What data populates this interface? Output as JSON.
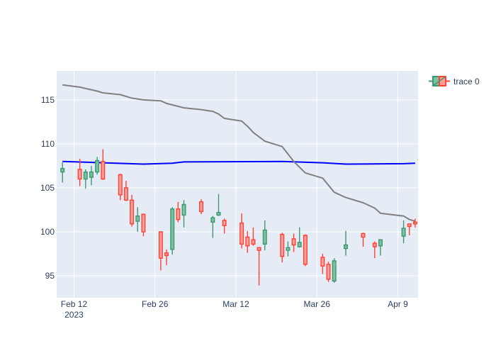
{
  "chart_data": {
    "type": "candlestick",
    "title": "",
    "xlabel": "",
    "ylabel": "",
    "ylim": [
      92.5,
      118.3
    ],
    "x_ticks": [
      {
        "date": "2023-02-12",
        "label": "Feb 12",
        "sublabel": "2023"
      },
      {
        "date": "2023-02-26",
        "label": "Feb 26",
        "sublabel": ""
      },
      {
        "date": "2023-03-12",
        "label": "Mar 12",
        "sublabel": ""
      },
      {
        "date": "2023-03-26",
        "label": "Mar 26",
        "sublabel": ""
      },
      {
        "date": "2023-04-09",
        "label": "Apr 9",
        "sublabel": ""
      }
    ],
    "y_ticks": [
      95,
      100,
      105,
      110,
      115
    ],
    "grid": true,
    "legend": {
      "position": "top-right",
      "entries": [
        {
          "name": "trace 0"
        }
      ]
    },
    "colors": {
      "plot_bg": "#e5ecf6",
      "grid": "#ffffff",
      "increasing": "#3d9970",
      "increasing_fill": "#7fbfa2",
      "decreasing": "#ff4136",
      "decreasing_fill": "#ff9f9a",
      "blue_line": "#0000ff",
      "gray_line": "#808080",
      "text": "#2a3f5f"
    },
    "series": [
      {
        "type": "ohlc",
        "name": "trace 0",
        "data": [
          {
            "date": "2023-02-10",
            "open": 106.8,
            "high": 107.9,
            "low": 105.6,
            "close": 107.2
          },
          {
            "date": "2023-02-13",
            "open": 107.1,
            "high": 108.3,
            "low": 105.2,
            "close": 106.0
          },
          {
            "date": "2023-02-14",
            "open": 106.0,
            "high": 107.1,
            "low": 104.9,
            "close": 106.8
          },
          {
            "date": "2023-02-15",
            "open": 106.2,
            "high": 107.5,
            "low": 105.3,
            "close": 106.8
          },
          {
            "date": "2023-02-16",
            "open": 106.8,
            "high": 108.5,
            "low": 106.5,
            "close": 108.1
          },
          {
            "date": "2023-02-17",
            "open": 108.0,
            "high": 109.4,
            "low": 105.9,
            "close": 106.0
          },
          {
            "date": "2023-02-20",
            "open": 106.5,
            "high": 106.6,
            "low": 103.6,
            "close": 104.2
          },
          {
            "date": "2023-02-21",
            "open": 105.0,
            "high": 105.8,
            "low": 103.5,
            "close": 103.6
          },
          {
            "date": "2023-02-22",
            "open": 103.6,
            "high": 104.2,
            "low": 100.6,
            "close": 100.9
          },
          {
            "date": "2023-02-23",
            "open": 101.2,
            "high": 102.8,
            "low": 100.0,
            "close": 101.8
          },
          {
            "date": "2023-02-24",
            "open": 102.0,
            "high": 102.0,
            "low": 99.5,
            "close": 100.0
          },
          {
            "date": "2023-02-27",
            "open": 100.0,
            "high": 100.0,
            "low": 95.6,
            "close": 97.0
          },
          {
            "date": "2023-02-28",
            "open": 97.6,
            "high": 98.0,
            "low": 96.2,
            "close": 97.3
          },
          {
            "date": "2023-03-01",
            "open": 98.0,
            "high": 102.8,
            "low": 97.4,
            "close": 102.6
          },
          {
            "date": "2023-03-02",
            "open": 102.6,
            "high": 103.4,
            "low": 101.1,
            "close": 101.4
          },
          {
            "date": "2023-03-03",
            "open": 101.9,
            "high": 103.6,
            "low": 100.5,
            "close": 103.1
          },
          {
            "date": "2023-03-06",
            "open": 103.4,
            "high": 103.7,
            "low": 102.0,
            "close": 102.3
          },
          {
            "date": "2023-03-08",
            "open": 101.1,
            "high": 101.8,
            "low": 99.3,
            "close": 101.6
          },
          {
            "date": "2023-03-09",
            "open": 101.9,
            "high": 104.3,
            "low": 101.8,
            "close": 102.2
          },
          {
            "date": "2023-03-10",
            "open": 101.3,
            "high": 101.5,
            "low": 99.8,
            "close": 100.7
          },
          {
            "date": "2023-03-13",
            "open": 101.0,
            "high": 102.1,
            "low": 98.1,
            "close": 98.6
          },
          {
            "date": "2023-03-14",
            "open": 99.4,
            "high": 100.1,
            "low": 97.6,
            "close": 98.4
          },
          {
            "date": "2023-03-15",
            "open": 99.1,
            "high": 100.5,
            "low": 98.4,
            "close": 98.6
          },
          {
            "date": "2023-03-16",
            "open": 98.2,
            "high": 98.2,
            "low": 93.9,
            "close": 97.9
          },
          {
            "date": "2023-03-17",
            "open": 98.6,
            "high": 101.3,
            "low": 97.9,
            "close": 100.2
          },
          {
            "date": "2023-03-20",
            "open": 99.7,
            "high": 99.9,
            "low": 96.5,
            "close": 97.2
          },
          {
            "date": "2023-03-21",
            "open": 97.9,
            "high": 98.9,
            "low": 97.2,
            "close": 98.2
          },
          {
            "date": "2023-03-22",
            "open": 99.2,
            "high": 99.8,
            "low": 97.7,
            "close": 98.5
          },
          {
            "date": "2023-03-23",
            "open": 98.3,
            "high": 100.5,
            "low": 98.2,
            "close": 98.8
          },
          {
            "date": "2023-03-24",
            "open": 99.6,
            "high": 99.7,
            "low": 96.1,
            "close": 96.3
          },
          {
            "date": "2023-03-27",
            "open": 97.1,
            "high": 97.5,
            "low": 95.2,
            "close": 96.1
          },
          {
            "date": "2023-03-28",
            "open": 96.3,
            "high": 96.6,
            "low": 94.3,
            "close": 94.6
          },
          {
            "date": "2023-03-29",
            "open": 94.4,
            "high": 97.0,
            "low": 94.2,
            "close": 96.7
          },
          {
            "date": "2023-03-31",
            "open": 98.1,
            "high": 100.1,
            "low": 97.3,
            "close": 98.5
          },
          {
            "date": "2023-04-03",
            "open": 99.8,
            "high": 99.9,
            "low": 98.3,
            "close": 99.4
          },
          {
            "date": "2023-04-05",
            "open": 98.7,
            "high": 98.9,
            "low": 97.0,
            "close": 98.3
          },
          {
            "date": "2023-04-06",
            "open": 98.4,
            "high": 99.1,
            "low": 97.3,
            "close": 99.1
          },
          {
            "date": "2023-04-10",
            "open": 99.5,
            "high": 101.3,
            "low": 98.7,
            "close": 100.4
          },
          {
            "date": "2023-04-11",
            "open": 100.9,
            "high": 100.9,
            "low": 99.6,
            "close": 100.6
          },
          {
            "date": "2023-04-12",
            "open": 101.1,
            "high": 101.5,
            "low": 100.5,
            "close": 100.9
          }
        ]
      },
      {
        "type": "line",
        "color": "#0000ff",
        "points": [
          {
            "date": "2023-02-10",
            "value": 108.0
          },
          {
            "date": "2023-02-17",
            "value": 107.85
          },
          {
            "date": "2023-02-24",
            "value": 107.7
          },
          {
            "date": "2023-03-01",
            "value": 107.8
          },
          {
            "date": "2023-03-03",
            "value": 107.95
          },
          {
            "date": "2023-03-20",
            "value": 108.0
          },
          {
            "date": "2023-03-27",
            "value": 107.85
          },
          {
            "date": "2023-03-31",
            "value": 107.7
          },
          {
            "date": "2023-04-10",
            "value": 107.75
          },
          {
            "date": "2023-04-12",
            "value": 107.8
          }
        ]
      },
      {
        "type": "line",
        "color": "#808080",
        "points": [
          {
            "date": "2023-02-10",
            "value": 116.7
          },
          {
            "date": "2023-02-13",
            "value": 116.45
          },
          {
            "date": "2023-02-14",
            "value": 116.3
          },
          {
            "date": "2023-02-16",
            "value": 116.0
          },
          {
            "date": "2023-02-17",
            "value": 115.8
          },
          {
            "date": "2023-02-20",
            "value": 115.6
          },
          {
            "date": "2023-02-22",
            "value": 115.2
          },
          {
            "date": "2023-02-24",
            "value": 115.0
          },
          {
            "date": "2023-02-27",
            "value": 114.9
          },
          {
            "date": "2023-02-28",
            "value": 114.6
          },
          {
            "date": "2023-03-03",
            "value": 114.1
          },
          {
            "date": "2023-03-06",
            "value": 113.9
          },
          {
            "date": "2023-03-08",
            "value": 113.7
          },
          {
            "date": "2023-03-09",
            "value": 113.4
          },
          {
            "date": "2023-03-10",
            "value": 112.9
          },
          {
            "date": "2023-03-13",
            "value": 112.6
          },
          {
            "date": "2023-03-14",
            "value": 112.0
          },
          {
            "date": "2023-03-15",
            "value": 111.3
          },
          {
            "date": "2023-03-17",
            "value": 110.3
          },
          {
            "date": "2023-03-20",
            "value": 109.7
          },
          {
            "date": "2023-03-22",
            "value": 108.0
          },
          {
            "date": "2023-03-24",
            "value": 106.7
          },
          {
            "date": "2023-03-27",
            "value": 106.1
          },
          {
            "date": "2023-03-29",
            "value": 104.5
          },
          {
            "date": "2023-03-31",
            "value": 103.9
          },
          {
            "date": "2023-04-03",
            "value": 103.3
          },
          {
            "date": "2023-04-05",
            "value": 102.7
          },
          {
            "date": "2023-04-06",
            "value": 102.1
          },
          {
            "date": "2023-04-10",
            "value": 101.8
          },
          {
            "date": "2023-04-11",
            "value": 101.4
          },
          {
            "date": "2023-04-12",
            "value": 101.2
          }
        ]
      }
    ]
  }
}
